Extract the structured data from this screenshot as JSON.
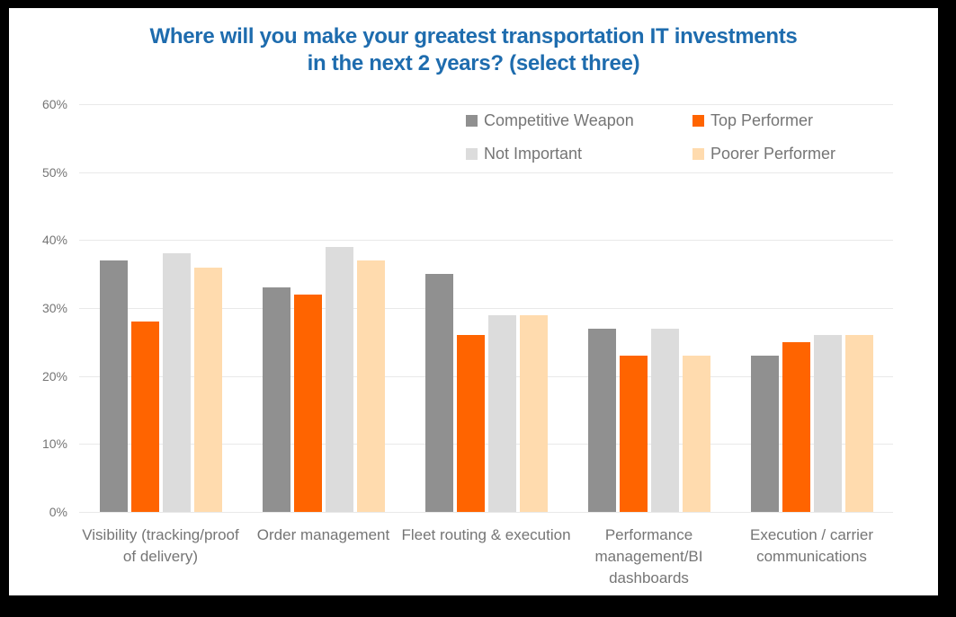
{
  "page": {
    "background_color": "#000000",
    "card_color": "#ffffff"
  },
  "chart_data": {
    "type": "bar",
    "title": "Where will you make your greatest transportation IT investments in the next 2 years? (select three)",
    "title_lines": [
      "Where will you make your greatest transportation IT investments",
      "in the next 2 years? (select three)"
    ],
    "title_color": "#1e6cae",
    "categories": [
      "Visibility (tracking/proof of delivery)",
      "Order management",
      "Fleet routing & execution",
      "Performance management/BI dashboards",
      "Execution / carrier communications"
    ],
    "series": [
      {
        "name": "Competitive Weapon",
        "color": "#909090",
        "values": [
          37,
          33,
          35,
          27,
          23
        ]
      },
      {
        "name": "Top Performer",
        "color": "#ff6400",
        "values": [
          28,
          32,
          26,
          23,
          25
        ]
      },
      {
        "name": "Not Important",
        "color": "#dcdcdc",
        "values": [
          38,
          39,
          29,
          27,
          26
        ]
      },
      {
        "name": "Poorer Performer",
        "color": "#ffdbae",
        "values": [
          36,
          37,
          29,
          23,
          26
        ]
      }
    ],
    "xlabel": "",
    "ylabel": "",
    "ylim": [
      0,
      60
    ],
    "yticks": [
      0,
      10,
      20,
      30,
      40,
      50,
      60
    ],
    "ytick_labels": [
      "0%",
      "10%",
      "20%",
      "30%",
      "40%",
      "50%",
      "60%"
    ],
    "grid": true,
    "legend_position": "inside-top-right",
    "legend_layout": "2x2",
    "tick_label_color": "#757575",
    "category_label_color": "#757575",
    "legend_text_color": "#757575",
    "gridline_color": "#e9e9e9"
  }
}
